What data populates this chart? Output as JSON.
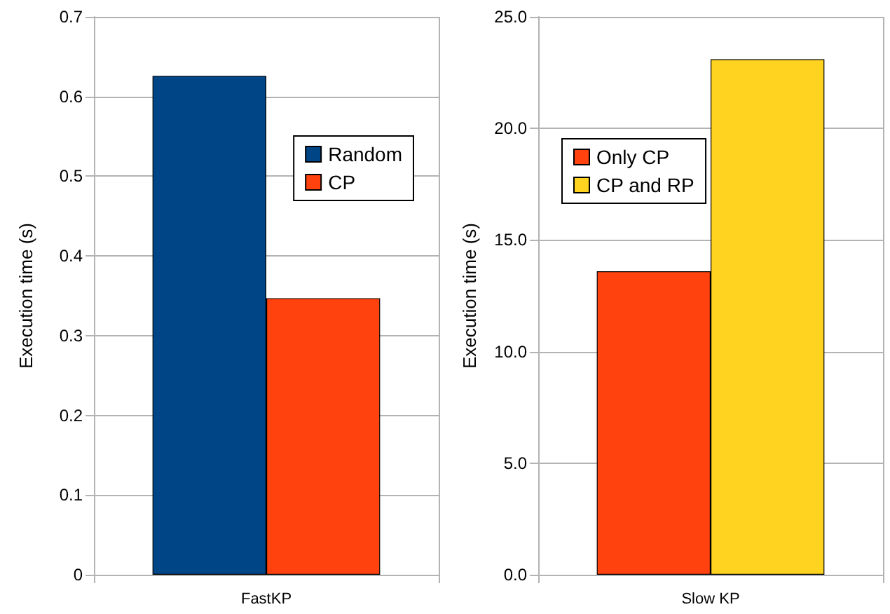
{
  "chart_data": [
    {
      "type": "bar",
      "categories": [
        "FastKP"
      ],
      "ylabel": "Execution time (s)",
      "series": [
        {
          "name": "Random",
          "color": "#004586",
          "values": [
            0.626
          ]
        },
        {
          "name": "CP",
          "color": "#ff420e",
          "values": [
            0.347
          ]
        }
      ],
      "ylim": [
        0,
        0.7
      ],
      "yticks": [
        0,
        0.1,
        0.2,
        0.3,
        0.4,
        0.5,
        0.6,
        0.7
      ],
      "grid": "y",
      "legend": "right"
    },
    {
      "type": "bar",
      "categories": [
        "Slow KP"
      ],
      "ylabel": "Execution time (s)",
      "series": [
        {
          "name": "Only CP",
          "color": "#ff420e",
          "values": [
            13.6
          ]
        },
        {
          "name": "CP and RP",
          "color": "#ffd320",
          "values": [
            23.1
          ]
        }
      ],
      "ylim": [
        0,
        25
      ],
      "yticks": [
        {
          "value": 0,
          "label": "0.0"
        },
        {
          "value": 5,
          "label": "5.0"
        },
        {
          "value": 10,
          "label": "10.0"
        },
        {
          "value": 15,
          "label": "15.0"
        },
        {
          "value": 20,
          "label": "20.0"
        },
        {
          "value": 25,
          "label": "25.0"
        }
      ],
      "grid": "y",
      "legend": "left"
    }
  ]
}
